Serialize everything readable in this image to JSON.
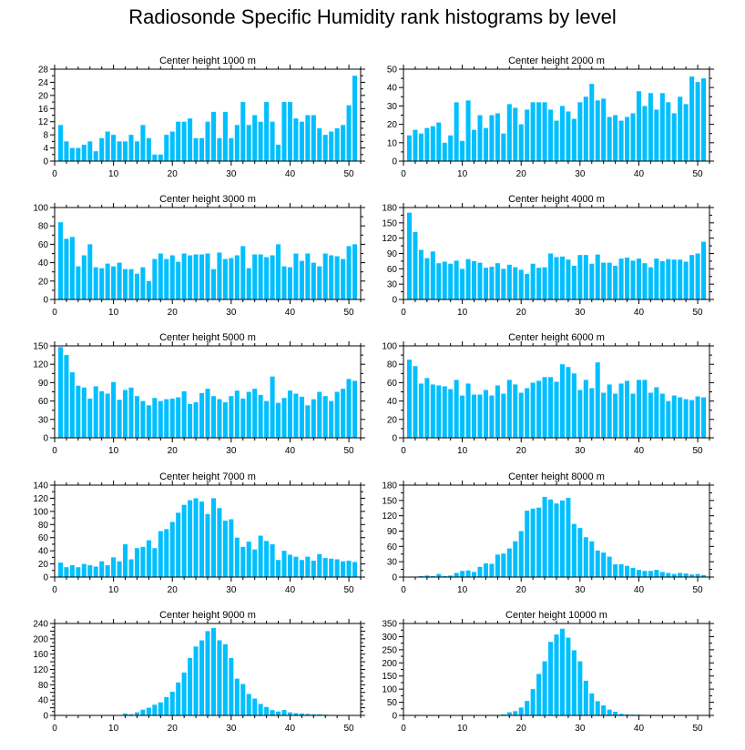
{
  "title": "Radiosonde Specific Humidity rank histograms by level",
  "colors": {
    "bar": "#00BFFF",
    "axis": "#000000",
    "background": "#FFFFFF"
  },
  "chart_data": [
    {
      "type": "bar",
      "title": "Center height 1000 m",
      "xlim": [
        0,
        52
      ],
      "ylim": [
        0,
        28
      ],
      "xticks": [
        0,
        10,
        20,
        30,
        40,
        50
      ],
      "yticks": [
        0,
        4,
        8,
        12,
        16,
        20,
        24,
        28
      ],
      "x": [
        1,
        2,
        3,
        4,
        5,
        6,
        7,
        8,
        9,
        10,
        11,
        12,
        13,
        14,
        15,
        16,
        17,
        18,
        19,
        20,
        21,
        22,
        23,
        24,
        25,
        26,
        27,
        28,
        29,
        30,
        31,
        32,
        33,
        34,
        35,
        36,
        37,
        38,
        39,
        40,
        41,
        42,
        43,
        44,
        45,
        46,
        47,
        48,
        49,
        50,
        51
      ],
      "values": [
        11,
        6,
        4,
        4,
        5,
        6,
        3,
        7,
        9,
        8,
        6,
        6,
        8,
        6,
        11,
        7,
        2,
        2,
        8,
        9,
        12,
        12,
        13,
        7,
        7,
        12,
        15,
        7,
        15,
        7,
        11,
        18,
        11,
        14,
        12,
        18,
        12,
        5,
        18,
        18,
        13,
        12,
        14,
        14,
        10,
        8,
        9,
        10,
        11,
        17,
        26
      ]
    },
    {
      "type": "bar",
      "title": "Center height 2000 m",
      "xlim": [
        0,
        52
      ],
      "ylim": [
        0,
        50
      ],
      "xticks": [
        0,
        10,
        20,
        30,
        40,
        50
      ],
      "yticks": [
        0,
        10,
        20,
        30,
        40,
        50
      ],
      "x": [
        1,
        2,
        3,
        4,
        5,
        6,
        7,
        8,
        9,
        10,
        11,
        12,
        13,
        14,
        15,
        16,
        17,
        18,
        19,
        20,
        21,
        22,
        23,
        24,
        25,
        26,
        27,
        28,
        29,
        30,
        31,
        32,
        33,
        34,
        35,
        36,
        37,
        38,
        39,
        40,
        41,
        42,
        43,
        44,
        45,
        46,
        47,
        48,
        49,
        50,
        51
      ],
      "values": [
        14,
        17,
        15,
        18,
        19,
        21,
        10,
        14,
        32,
        11,
        33,
        17,
        25,
        18,
        25,
        26,
        15,
        31,
        29,
        20,
        28,
        32,
        32,
        32,
        28,
        22,
        30,
        27,
        23,
        32,
        35,
        42,
        33,
        34,
        24,
        25,
        22,
        24,
        26,
        38,
        30,
        37,
        28,
        37,
        32,
        26,
        35,
        31,
        46,
        43,
        45
      ]
    },
    {
      "type": "bar",
      "title": "Center height 3000 m",
      "xlim": [
        0,
        52
      ],
      "ylim": [
        0,
        100
      ],
      "xticks": [
        0,
        10,
        20,
        30,
        40,
        50
      ],
      "yticks": [
        0,
        20,
        40,
        60,
        80,
        100
      ],
      "x": [
        1,
        2,
        3,
        4,
        5,
        6,
        7,
        8,
        9,
        10,
        11,
        12,
        13,
        14,
        15,
        16,
        17,
        18,
        19,
        20,
        21,
        22,
        23,
        24,
        25,
        26,
        27,
        28,
        29,
        30,
        31,
        32,
        33,
        34,
        35,
        36,
        37,
        38,
        39,
        40,
        41,
        42,
        43,
        44,
        45,
        46,
        47,
        48,
        49,
        50,
        51
      ],
      "values": [
        84,
        66,
        68,
        36,
        48,
        60,
        35,
        34,
        39,
        36,
        40,
        33,
        33,
        28,
        35,
        20,
        44,
        50,
        44,
        48,
        41,
        50,
        48,
        49,
        49,
        50,
        33,
        51,
        44,
        45,
        48,
        58,
        34,
        49,
        49,
        46,
        48,
        60,
        36,
        35,
        50,
        42,
        50,
        40,
        36,
        50,
        48,
        47,
        44,
        58,
        60
      ]
    },
    {
      "type": "bar",
      "title": "Center height 4000 m",
      "xlim": [
        0,
        52
      ],
      "ylim": [
        0,
        180
      ],
      "xticks": [
        0,
        10,
        20,
        30,
        40,
        50
      ],
      "yticks": [
        0,
        30,
        60,
        90,
        120,
        150,
        180
      ],
      "x": [
        1,
        2,
        3,
        4,
        5,
        6,
        7,
        8,
        9,
        10,
        11,
        12,
        13,
        14,
        15,
        16,
        17,
        18,
        19,
        20,
        21,
        22,
        23,
        24,
        25,
        26,
        27,
        28,
        29,
        30,
        31,
        32,
        33,
        34,
        35,
        36,
        37,
        38,
        39,
        40,
        41,
        42,
        43,
        44,
        45,
        46,
        47,
        48,
        49,
        50,
        51
      ],
      "values": [
        170,
        132,
        97,
        81,
        94,
        71,
        74,
        70,
        76,
        60,
        79,
        75,
        72,
        62,
        64,
        71,
        60,
        68,
        63,
        58,
        50,
        70,
        62,
        63,
        90,
        83,
        84,
        78,
        66,
        87,
        87,
        70,
        88,
        72,
        72,
        66,
        80,
        82,
        76,
        80,
        71,
        63,
        80,
        75,
        79,
        78,
        78,
        74,
        87,
        90,
        113
      ]
    },
    {
      "type": "bar",
      "title": "Center height 5000 m",
      "xlim": [
        0,
        52
      ],
      "ylim": [
        0,
        150
      ],
      "xticks": [
        0,
        10,
        20,
        30,
        40,
        50
      ],
      "yticks": [
        0,
        30,
        60,
        90,
        120,
        150
      ],
      "x": [
        1,
        2,
        3,
        4,
        5,
        6,
        7,
        8,
        9,
        10,
        11,
        12,
        13,
        14,
        15,
        16,
        17,
        18,
        19,
        20,
        21,
        22,
        23,
        24,
        25,
        26,
        27,
        28,
        29,
        30,
        31,
        32,
        33,
        34,
        35,
        36,
        37,
        38,
        39,
        40,
        41,
        42,
        43,
        44,
        45,
        46,
        47,
        48,
        49,
        50,
        51
      ],
      "values": [
        148,
        135,
        107,
        85,
        82,
        64,
        84,
        76,
        72,
        91,
        62,
        78,
        82,
        68,
        60,
        53,
        65,
        60,
        63,
        64,
        66,
        76,
        55,
        58,
        73,
        80,
        68,
        63,
        58,
        68,
        77,
        64,
        75,
        80,
        70,
        60,
        100,
        57,
        65,
        77,
        72,
        67,
        53,
        63,
        75,
        68,
        60,
        75,
        80,
        96,
        93
      ]
    },
    {
      "type": "bar",
      "title": "Center height 6000 m",
      "xlim": [
        0,
        52
      ],
      "ylim": [
        0,
        100
      ],
      "xticks": [
        0,
        10,
        20,
        30,
        40,
        50
      ],
      "yticks": [
        0,
        20,
        40,
        60,
        80,
        100
      ],
      "x": [
        1,
        2,
        3,
        4,
        5,
        6,
        7,
        8,
        9,
        10,
        11,
        12,
        13,
        14,
        15,
        16,
        17,
        18,
        19,
        20,
        21,
        22,
        23,
        24,
        25,
        26,
        27,
        28,
        29,
        30,
        31,
        32,
        33,
        34,
        35,
        36,
        37,
        38,
        39,
        40,
        41,
        42,
        43,
        44,
        45,
        46,
        47,
        48,
        49,
        50,
        51
      ],
      "values": [
        85,
        78,
        59,
        65,
        58,
        57,
        56,
        53,
        63,
        46,
        59,
        47,
        47,
        52,
        46,
        57,
        48,
        63,
        58,
        49,
        54,
        60,
        62,
        66,
        66,
        61,
        80,
        77,
        70,
        52,
        63,
        54,
        82,
        49,
        58,
        48,
        59,
        62,
        48,
        63,
        63,
        49,
        55,
        48,
        40,
        46,
        44,
        42,
        41,
        45,
        44
      ]
    },
    {
      "type": "bar",
      "title": "Center height 7000 m",
      "xlim": [
        0,
        52
      ],
      "ylim": [
        0,
        140
      ],
      "xticks": [
        0,
        10,
        20,
        30,
        40,
        50
      ],
      "yticks": [
        0,
        20,
        40,
        60,
        80,
        100,
        120,
        140
      ],
      "x": [
        1,
        2,
        3,
        4,
        5,
        6,
        7,
        8,
        9,
        10,
        11,
        12,
        13,
        14,
        15,
        16,
        17,
        18,
        19,
        20,
        21,
        22,
        23,
        24,
        25,
        26,
        27,
        28,
        29,
        30,
        31,
        32,
        33,
        34,
        35,
        36,
        37,
        38,
        39,
        40,
        41,
        42,
        43,
        44,
        45,
        46,
        47,
        48,
        49,
        50,
        51
      ],
      "values": [
        22,
        15,
        18,
        15,
        20,
        18,
        16,
        24,
        18,
        30,
        24,
        50,
        27,
        44,
        46,
        56,
        44,
        70,
        73,
        84,
        98,
        110,
        117,
        120,
        115,
        96,
        120,
        105,
        86,
        88,
        60,
        46,
        54,
        42,
        63,
        55,
        50,
        26,
        40,
        34,
        31,
        26,
        31,
        25,
        35,
        29,
        28,
        27,
        24,
        25,
        23
      ]
    },
    {
      "type": "bar",
      "title": "Center height 8000 m",
      "xlim": [
        0,
        52
      ],
      "ylim": [
        0,
        180
      ],
      "xticks": [
        0,
        10,
        20,
        30,
        40,
        50
      ],
      "yticks": [
        0,
        30,
        60,
        90,
        120,
        150,
        180
      ],
      "x": [
        1,
        2,
        3,
        4,
        5,
        6,
        7,
        8,
        9,
        10,
        11,
        12,
        13,
        14,
        15,
        16,
        17,
        18,
        19,
        20,
        21,
        22,
        23,
        24,
        25,
        26,
        27,
        28,
        29,
        30,
        31,
        32,
        33,
        34,
        35,
        36,
        37,
        38,
        39,
        40,
        41,
        42,
        43,
        44,
        45,
        46,
        47,
        48,
        49,
        50,
        51
      ],
      "values": [
        0,
        0,
        2,
        3,
        2,
        6,
        2,
        3,
        8,
        12,
        13,
        10,
        20,
        27,
        26,
        44,
        46,
        56,
        70,
        90,
        130,
        134,
        136,
        157,
        152,
        144,
        150,
        155,
        104,
        96,
        78,
        70,
        52,
        48,
        40,
        25,
        25,
        22,
        18,
        14,
        12,
        12,
        14,
        10,
        8,
        6,
        8,
        7,
        5,
        6,
        4
      ]
    },
    {
      "type": "bar",
      "title": "Center height 9000 m",
      "xlim": [
        0,
        52
      ],
      "ylim": [
        0,
        240
      ],
      "xticks": [
        0,
        10,
        20,
        30,
        40,
        50
      ],
      "yticks": [
        0,
        20,
        40,
        60,
        80,
        100,
        120,
        140,
        160,
        180,
        200,
        220,
        240
      ],
      "yticklabels": [
        "0",
        "",
        "40",
        "",
        "80",
        "",
        "120",
        "",
        "160",
        "",
        "200",
        "",
        "240"
      ],
      "x": [
        1,
        2,
        3,
        4,
        5,
        6,
        7,
        8,
        9,
        10,
        11,
        12,
        13,
        14,
        15,
        16,
        17,
        18,
        19,
        20,
        21,
        22,
        23,
        24,
        25,
        26,
        27,
        28,
        29,
        30,
        31,
        32,
        33,
        34,
        35,
        36,
        37,
        38,
        39,
        40,
        41,
        42,
        43,
        44,
        45,
        46,
        47,
        48,
        49,
        50,
        51
      ],
      "values": [
        0,
        0,
        0,
        0,
        0,
        0,
        0,
        0,
        0,
        0,
        1,
        5,
        3,
        8,
        15,
        20,
        28,
        34,
        48,
        62,
        86,
        112,
        150,
        180,
        196,
        220,
        228,
        196,
        186,
        150,
        96,
        82,
        56,
        44,
        30,
        22,
        14,
        10,
        14,
        8,
        6,
        5,
        4,
        3,
        3,
        2,
        1,
        1,
        1,
        1,
        0
      ]
    },
    {
      "type": "bar",
      "title": "Center height 10000 m",
      "xlim": [
        0,
        52
      ],
      "ylim": [
        0,
        350
      ],
      "xticks": [
        0,
        10,
        20,
        30,
        40,
        50
      ],
      "yticks": [
        0,
        50,
        100,
        150,
        200,
        250,
        300,
        350
      ],
      "x": [
        1,
        2,
        3,
        4,
        5,
        6,
        7,
        8,
        9,
        10,
        11,
        12,
        13,
        14,
        15,
        16,
        17,
        18,
        19,
        20,
        21,
        22,
        23,
        24,
        25,
        26,
        27,
        28,
        29,
        30,
        31,
        32,
        33,
        34,
        35,
        36,
        37,
        38,
        39,
        40,
        41,
        42,
        43,
        44,
        45,
        46,
        47,
        48,
        49,
        50,
        51
      ],
      "values": [
        0,
        0,
        0,
        0,
        0,
        0,
        0,
        0,
        0,
        0,
        0,
        0,
        0,
        0,
        0,
        2,
        4,
        12,
        16,
        30,
        55,
        100,
        158,
        206,
        280,
        308,
        330,
        296,
        248,
        206,
        132,
        84,
        54,
        38,
        22,
        14,
        6,
        4,
        3,
        3,
        2,
        2,
        2,
        1,
        1,
        1,
        0,
        0,
        0,
        0,
        0
      ]
    }
  ]
}
